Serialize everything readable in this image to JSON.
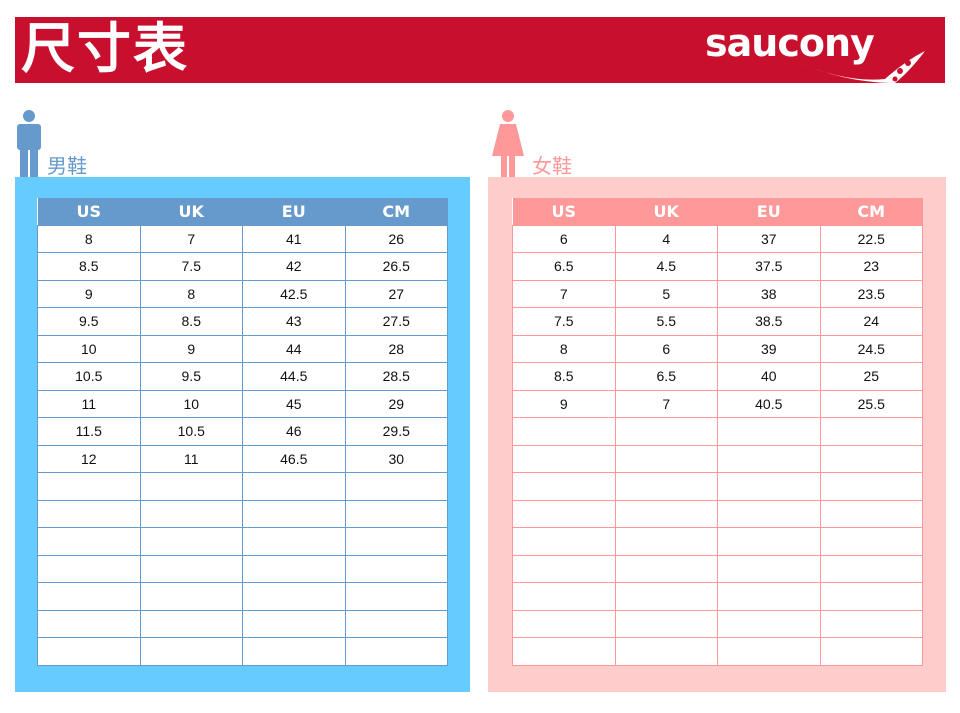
{
  "header": {
    "title": "尺寸表",
    "brand": "saucony",
    "color": "#c8102e"
  },
  "men": {
    "label": "男鞋",
    "icon": "man-icon",
    "color": "#6699cc",
    "columns": [
      "US",
      "UK",
      "EU",
      "CM"
    ],
    "rows": [
      [
        "8",
        "7",
        "41",
        "26"
      ],
      [
        "8.5",
        "7.5",
        "42",
        "26.5"
      ],
      [
        "9",
        "8",
        "42.5",
        "27"
      ],
      [
        "9.5",
        "8.5",
        "43",
        "27.5"
      ],
      [
        "10",
        "9",
        "44",
        "28"
      ],
      [
        "10.5",
        "9.5",
        "44.5",
        "28.5"
      ],
      [
        "11",
        "10",
        "45",
        "29"
      ],
      [
        "11.5",
        "10.5",
        "46",
        "29.5"
      ],
      [
        "12",
        "11",
        "46.5",
        "30"
      ]
    ]
  },
  "women": {
    "label": "女鞋",
    "icon": "woman-icon",
    "color": "#ff9999",
    "columns": [
      "US",
      "UK",
      "EU",
      "CM"
    ],
    "rows": [
      [
        "6",
        "4",
        "37",
        "22.5"
      ],
      [
        "6.5",
        "4.5",
        "37.5",
        "23"
      ],
      [
        "7",
        "5",
        "38",
        "23.5"
      ],
      [
        "7.5",
        "5.5",
        "38.5",
        "24"
      ],
      [
        "8",
        "6",
        "39",
        "24.5"
      ],
      [
        "8.5",
        "6.5",
        "40",
        "25"
      ],
      [
        "9",
        "7",
        "40.5",
        "25.5"
      ]
    ]
  }
}
